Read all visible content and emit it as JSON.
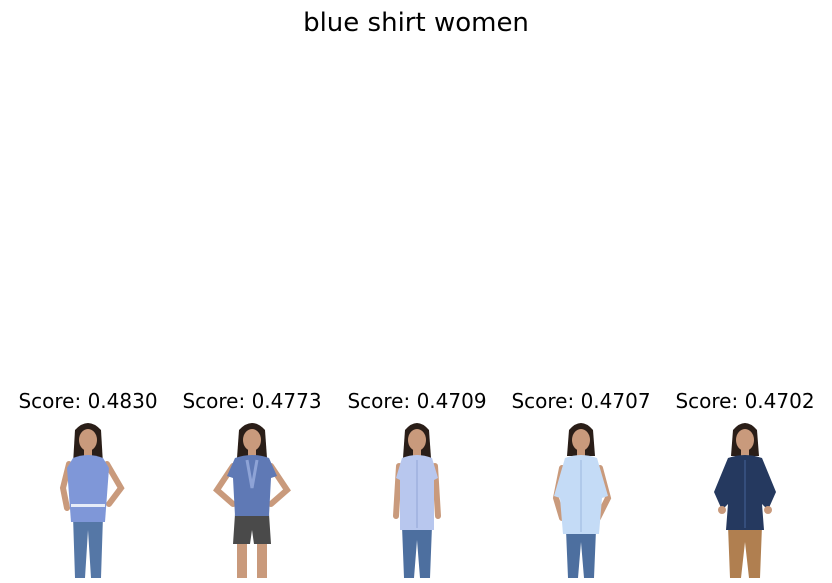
{
  "title": "blue shirt women",
  "results": [
    {
      "score_label": "Score: 0.4830",
      "image": "woman-light-blue-sleeveless-top-jeans"
    },
    {
      "score_label": "Score: 0.4773",
      "image": "woman-blue-ruffled-blouse-shorts"
    },
    {
      "score_label": "Score: 0.4709",
      "image": "woman-pale-blue-short-sleeve-shirt-jeans"
    },
    {
      "score_label": "Score: 0.4707",
      "image": "woman-light-blue-rolled-sleeve-shirt"
    },
    {
      "score_label": "Score: 0.4702",
      "image": "woman-navy-long-sleeve-shirt-khakis"
    }
  ],
  "colors": {
    "skin": "#c99a7c",
    "hair": "#2a1e18",
    "shirts": [
      "#7f97d8",
      "#5f79b5",
      "#b8c7ee",
      "#c4dbf6",
      "#25395f"
    ],
    "bottoms": [
      "#5577a6",
      "#4a4a4a",
      "#4d6f9f",
      "#4d6f9f",
      "#b07f50"
    ]
  }
}
